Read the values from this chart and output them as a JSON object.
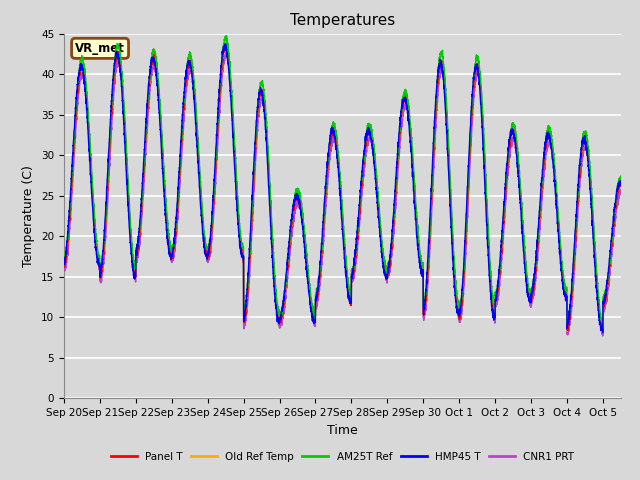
{
  "title": "Temperatures",
  "xlabel": "Time",
  "ylabel": "Temperature (C)",
  "ylim": [
    0,
    45
  ],
  "yticks": [
    0,
    5,
    10,
    15,
    20,
    25,
    30,
    35,
    40,
    45
  ],
  "background_color": "#d8d8d8",
  "plot_bg_color": "#d8d8d8",
  "grid_color": "#ffffff",
  "annotation_text": "VR_met",
  "annotation_bg": "#ffffcc",
  "annotation_border": "#8B4513",
  "series_colors": [
    "#ff0000",
    "#ffaa00",
    "#00cc00",
    "#0000ff",
    "#bb44cc"
  ],
  "series_names": [
    "Panel T",
    "Old Ref Temp",
    "AM25T Ref",
    "HMP45 T",
    "CNR1 PRT"
  ],
  "figsize": [
    6.4,
    4.8
  ],
  "dpi": 100,
  "day_params": [
    {
      "t_min": 16.5,
      "t_max": 41.0
    },
    {
      "t_min": 15.0,
      "t_max": 42.5
    },
    {
      "t_min": 17.5,
      "t_max": 42.0
    },
    {
      "t_min": 17.5,
      "t_max": 41.5
    },
    {
      "t_min": 17.5,
      "t_max": 43.5
    },
    {
      "t_min": 9.5,
      "t_max": 38.0
    },
    {
      "t_min": 9.5,
      "t_max": 25.0
    },
    {
      "t_min": 12.0,
      "t_max": 33.0
    },
    {
      "t_min": 15.0,
      "t_max": 33.0
    },
    {
      "t_min": 15.5,
      "t_max": 37.0
    },
    {
      "t_min": 10.5,
      "t_max": 41.5
    },
    {
      "t_min": 10.0,
      "t_max": 41.0
    },
    {
      "t_min": 12.0,
      "t_max": 33.0
    },
    {
      "t_min": 12.5,
      "t_max": 32.5
    },
    {
      "t_min": 8.5,
      "t_max": 32.0
    },
    {
      "t_min": 11.5,
      "t_max": 26.5
    }
  ]
}
